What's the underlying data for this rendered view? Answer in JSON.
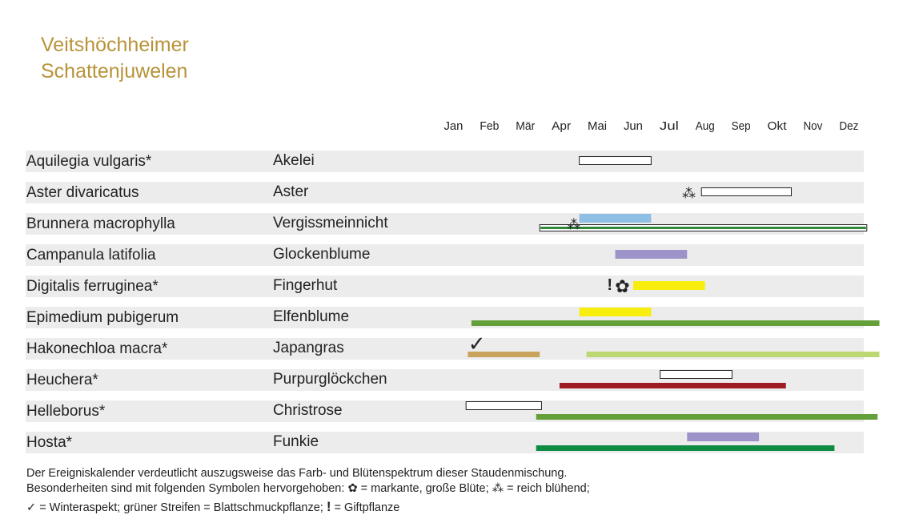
{
  "title_lines": [
    "Veitshöchheimer",
    "Schattenjuwelen"
  ],
  "chart_data": {
    "type": "gantt",
    "months": [
      "Jan",
      "Feb",
      "Mär",
      "Apr",
      "Mai",
      "Jun",
      "Jul",
      "Aug",
      "Sep",
      "Okt",
      "Nov",
      "Dez"
    ],
    "rows": [
      {
        "latin": "Aquilegia vulgaris*",
        "german": "Akelei",
        "bars": [
          {
            "kind": "bloom",
            "color": "#ffffff",
            "outline": true,
            "start": 4.0,
            "end": 6.0
          }
        ],
        "symbols": []
      },
      {
        "latin": "Aster divaricatus",
        "german": "Aster",
        "bars": [
          {
            "kind": "bloom",
            "color": "#ffffff",
            "outline": true,
            "start": 7.4,
            "end": 9.9
          }
        ],
        "symbols": [
          {
            "icon": "reich-bluehend-icon",
            "month": 7.05
          }
        ]
      },
      {
        "latin": "Brunnera macrophylla",
        "german": "Vergissmeinnicht",
        "bars": [
          {
            "kind": "bloom",
            "color": "#8ec0e6",
            "start": 4.0,
            "end": 6.0
          },
          {
            "kind": "foliage",
            "color": "#2e8b3a",
            "outline": true,
            "start": 2.9,
            "end": 12.0
          }
        ],
        "symbols": [
          {
            "icon": "reich-bluehend-icon",
            "month": 3.85
          }
        ]
      },
      {
        "latin": "Campanula latifolia",
        "german": "Glockenblume",
        "bars": [
          {
            "kind": "bloom",
            "color": "#9d93c9",
            "start": 5.0,
            "end": 7.0
          }
        ],
        "symbols": []
      },
      {
        "latin": "Digitalis ferruginea*",
        "german": "Fingerhut",
        "bars": [
          {
            "kind": "bloom",
            "color": "#f7ee0e",
            "start": 5.5,
            "end": 7.5
          }
        ],
        "symbols": [
          {
            "icon": "giftpflanze-icon",
            "month": 4.85
          },
          {
            "icon": "grosse-bluete-icon",
            "month": 5.2
          }
        ]
      },
      {
        "latin": "Epimedium pubigerum",
        "german": "Elfenblume",
        "bars": [
          {
            "kind": "bloom",
            "color": "#f7ee0e",
            "start": 4.0,
            "end": 6.0
          },
          {
            "kind": "foliage",
            "color": "#63a03a",
            "start": 1.0,
            "end": 12.35
          }
        ],
        "symbols": []
      },
      {
        "latin": "Hakonechloa macra*",
        "german": "Japangras",
        "bars": [
          {
            "kind": "foliage",
            "color": "#c9a35c",
            "start": 0.9,
            "end": 2.9
          },
          {
            "kind": "foliage",
            "color": "#bcd873",
            "start": 4.2,
            "end": 12.35
          }
        ],
        "symbols": [
          {
            "icon": "winteraspekt-icon",
            "month": 1.15
          }
        ]
      },
      {
        "latin": "Heuchera*",
        "german": "Purpurglöckchen",
        "bars": [
          {
            "kind": "bloom",
            "color": "#ffffff",
            "outline": true,
            "start": 6.25,
            "end": 8.25
          },
          {
            "kind": "foliage",
            "color": "#a01c24",
            "start": 3.45,
            "end": 9.75
          }
        ],
        "symbols": []
      },
      {
        "latin": "Helleborus*",
        "german": "Christrose",
        "bars": [
          {
            "kind": "bloom",
            "color": "#ffffff",
            "outline": true,
            "start": 0.85,
            "end": 2.95
          },
          {
            "kind": "foliage",
            "color": "#63a03a",
            "start": 2.8,
            "end": 12.3
          }
        ],
        "symbols": []
      },
      {
        "latin": "Hosta*",
        "german": "Funkie",
        "bars": [
          {
            "kind": "bloom",
            "color": "#9d93c9",
            "start": 7.0,
            "end": 9.0
          },
          {
            "kind": "foliage",
            "color": "#0e8c44",
            "start": 2.8,
            "end": 11.1
          }
        ],
        "symbols": []
      }
    ]
  },
  "footer": {
    "line1": "Der Ereigniskalender verdeutlicht auszugsweise das Farb- und Blütenspektrum dieser Staudenmischung.",
    "line2_prefix": "Besonderheiten sind mit folgenden Symbolen hervorgehoben:",
    "legend_grosse_bluete": "= markante, große Blüte;",
    "legend_reich_bluehend": "= reich blühend;",
    "legend_winteraspekt": "= Winteraspekt;",
    "legend_blattschmuck": "grüner Streifen = Blattschmuckpflanze;",
    "legend_giftpflanze": "= Giftpflanze"
  },
  "colors": {
    "title": "#b8933a",
    "row_background": "#ececed"
  },
  "icons": {
    "check": "✓",
    "excl": "!",
    "flower": "✿",
    "stars": "⁂"
  }
}
